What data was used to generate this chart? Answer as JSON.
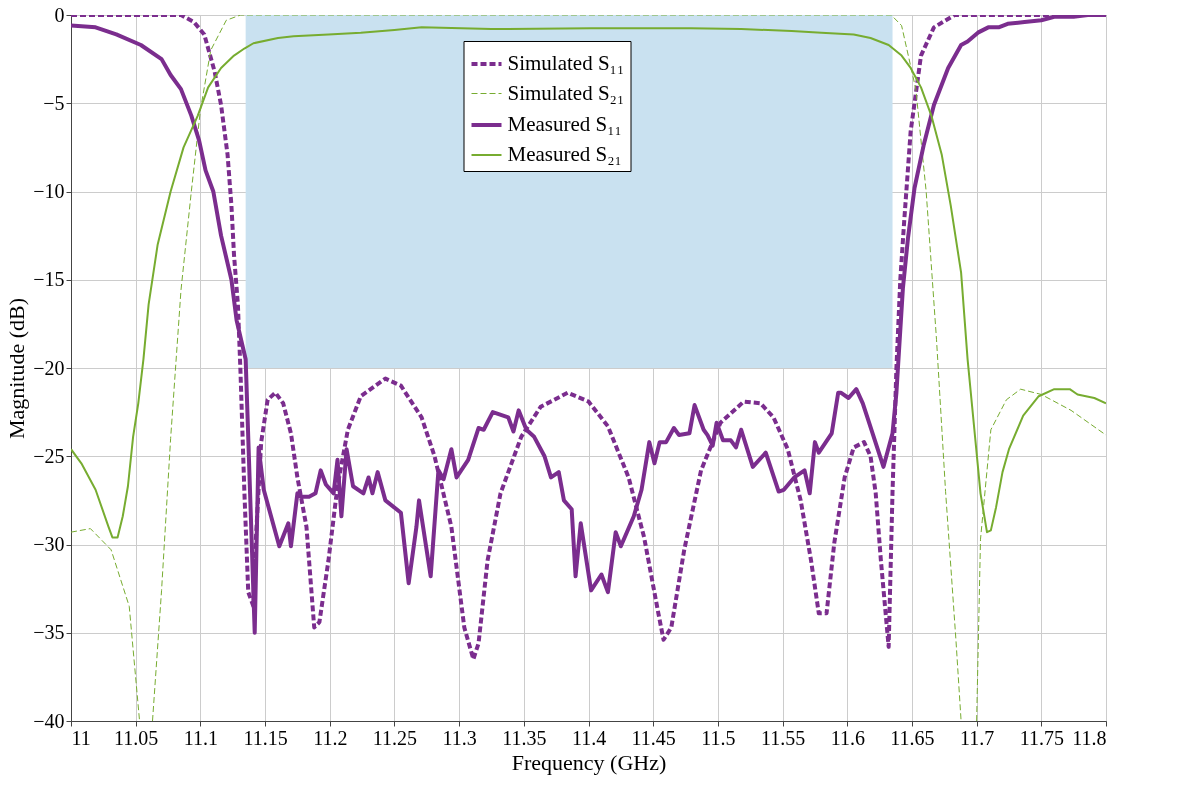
{
  "chart_data": {
    "type": "line",
    "xlabel": "Frequency (GHz)",
    "ylabel": "Magnitude (dB)",
    "xlim": [
      11,
      11.8
    ],
    "ylim": [
      -40,
      0
    ],
    "xticks": [
      11,
      11.05,
      11.1,
      11.15,
      11.2,
      11.25,
      11.3,
      11.35,
      11.4,
      11.45,
      11.5,
      11.55,
      11.6,
      11.65,
      11.7,
      11.75,
      11.8
    ],
    "yticks": [
      -40,
      -35,
      -30,
      -25,
      -20,
      -15,
      -10,
      -5,
      0
    ],
    "grid": true,
    "legend": "top",
    "marker": "none",
    "series": [
      {
        "type": "area",
        "color": "#c9e1f0",
        "x": [
          11.135,
          11.635
        ],
        "values": [
          -20,
          -20
        ]
      },
      {
        "name": "Simulated S₁₁",
        "color": "#7b2d8e",
        "line_style": "dashed",
        "x": [
          11.0,
          11.085,
          11.095,
          11.103,
          11.111,
          11.116,
          11.121,
          11.124,
          11.126,
          11.129,
          11.131,
          11.134,
          11.137,
          11.141,
          11.142,
          11.147,
          11.152,
          11.158,
          11.164,
          11.17,
          11.175,
          11.182,
          11.188,
          11.192,
          11.199,
          11.206,
          11.214,
          11.224,
          11.243,
          11.255,
          11.271,
          11.281,
          11.294,
          11.304,
          11.311,
          11.315,
          11.322,
          11.332,
          11.348,
          11.363,
          11.384,
          11.4,
          11.415,
          11.431,
          11.443,
          11.454,
          11.458,
          11.464,
          11.474,
          11.487,
          11.502,
          11.52,
          11.533,
          11.543,
          11.554,
          11.564,
          11.572,
          11.578,
          11.584,
          11.59,
          11.598,
          11.605,
          11.613,
          11.618,
          11.622,
          11.626,
          11.632,
          11.635,
          11.638,
          11.641,
          11.644,
          11.649,
          11.657,
          11.667,
          11.683,
          11.8
        ],
        "values": [
          0,
          0,
          -0.4,
          -1.1,
          -3.2,
          -5.1,
          -7.9,
          -10.8,
          -13.6,
          -16.4,
          -20.2,
          -27,
          -32.7,
          -33.5,
          -30.9,
          -24.2,
          -21.8,
          -21.4,
          -22,
          -23.7,
          -26.2,
          -29,
          -34.7,
          -34.4,
          -30.9,
          -26.7,
          -23.5,
          -21.6,
          -20.6,
          -21,
          -22.8,
          -25,
          -29,
          -34.7,
          -36.5,
          -35.6,
          -30.9,
          -27.1,
          -23.9,
          -22.2,
          -21.4,
          -21.9,
          -23.3,
          -26.2,
          -29.6,
          -33.9,
          -35.4,
          -34.7,
          -30.3,
          -25.8,
          -23.1,
          -21.9,
          -22,
          -22.8,
          -24.6,
          -27.5,
          -30.9,
          -33.9,
          -33.9,
          -29.9,
          -26.2,
          -24.5,
          -24.2,
          -25,
          -27.1,
          -30.9,
          -35.8,
          -27,
          -20,
          -15,
          -11.7,
          -6.6,
          -2.3,
          -0.7,
          0,
          0
        ]
      },
      {
        "name": "Simulated S₂₁",
        "color": "#77ac30",
        "line_style": "dashed",
        "x": [
          11.0,
          11.015,
          11.031,
          11.045,
          11.053,
          11.058,
          11.063,
          11.07,
          11.077,
          11.085,
          11.093,
          11.1,
          11.108,
          11.12,
          11.131,
          11.634,
          11.642,
          11.653,
          11.661,
          11.669,
          11.676,
          11.684,
          11.688,
          11.694,
          11.7,
          11.703,
          11.711,
          11.723,
          11.734,
          11.75,
          11.773,
          11.8
        ],
        "values": [
          -29.3,
          -29.1,
          -30.3,
          -33.5,
          -40,
          null,
          -40,
          -32.6,
          -24,
          -15.6,
          -10,
          -5.4,
          -2,
          -0.3,
          0,
          0,
          -0.6,
          -4.2,
          -10,
          -18.4,
          -27,
          -35.4,
          -40,
          null,
          -40,
          -29.7,
          -23.5,
          -21.8,
          -21.2,
          -21.5,
          -22.4,
          -23.8
        ]
      },
      {
        "name": "Measured S₁₁",
        "color": "#7b2d8e",
        "line_style": "solid",
        "x": [
          11.0,
          11.019,
          11.035,
          11.054,
          11.07,
          11.077,
          11.085,
          11.093,
          11.099,
          11.104,
          11.11,
          11.116,
          11.124,
          11.128,
          11.135,
          11.142,
          11.145,
          11.149,
          11.161,
          11.168,
          11.17,
          11.175,
          11.178,
          11.184,
          11.189,
          11.193,
          11.197,
          11.203,
          11.206,
          11.209,
          11.213,
          11.218,
          11.226,
          11.23,
          11.233,
          11.237,
          11.243,
          11.255,
          11.261,
          11.267,
          11.269,
          11.278,
          11.284,
          11.288,
          11.294,
          11.298,
          11.307,
          11.315,
          11.319,
          11.326,
          11.338,
          11.342,
          11.346,
          11.352,
          11.358,
          11.366,
          11.371,
          11.377,
          11.381,
          11.387,
          11.39,
          11.394,
          11.402,
          11.41,
          11.415,
          11.421,
          11.425,
          11.435,
          11.441,
          11.447,
          11.451,
          11.455,
          11.46,
          11.466,
          11.47,
          11.478,
          11.482,
          11.489,
          11.492,
          11.496,
          11.499,
          11.504,
          11.51,
          11.514,
          11.518,
          11.527,
          11.537,
          11.547,
          11.551,
          11.559,
          11.567,
          11.571,
          11.575,
          11.578,
          11.588,
          11.593,
          11.595,
          11.601,
          11.607,
          11.612,
          11.616,
          11.628,
          11.635,
          11.638,
          11.639,
          11.643,
          11.647,
          11.652,
          11.659,
          11.667,
          11.678,
          11.688,
          11.693,
          11.701,
          11.709,
          11.717,
          11.724,
          11.737,
          11.75,
          11.76,
          11.775,
          11.786,
          11.8
        ],
        "values": [
          -0.6,
          -0.7,
          -1.1,
          -1.7,
          -2.5,
          -3.4,
          -4.2,
          -5.7,
          -7.1,
          -8.8,
          -10,
          -12.5,
          -15,
          -17.3,
          -19.5,
          -35,
          -24.5,
          -26.9,
          -30.1,
          -28.8,
          -30.1,
          -27.1,
          -27.3,
          -27.3,
          -27.1,
          -25.8,
          -26.6,
          -27.1,
          -25.2,
          -28.4,
          -24.6,
          -26.7,
          -27.1,
          -26.2,
          -27.1,
          -25.9,
          -27.5,
          -28.2,
          -32.2,
          -29,
          -27.5,
          -31.8,
          -25.8,
          -26.3,
          -24.6,
          -26.2,
          -25.2,
          -23.4,
          -23.5,
          -22.5,
          -22.8,
          -23.6,
          -22.4,
          -23.5,
          -23.9,
          -25,
          -26.2,
          -25.9,
          -27.5,
          -28,
          -31.8,
          -28.8,
          -32.6,
          -31.7,
          -32.7,
          -29.3,
          -30.1,
          -28.4,
          -26.9,
          -24.2,
          -25.4,
          -24.2,
          -24.2,
          -23.4,
          -23.8,
          -23.7,
          -22.1,
          -23.5,
          -23.8,
          -24.4,
          -23.1,
          -24.1,
          -24.1,
          -24.5,
          -23.5,
          -25.6,
          -24.8,
          -27,
          -26.9,
          -26.2,
          -25.8,
          -27.1,
          -24.2,
          -24.8,
          -23.7,
          -21.4,
          -21.4,
          -21.7,
          -21.2,
          -22,
          -22.9,
          -25.6,
          -23.7,
          -21.4,
          -20.2,
          -15.5,
          -12.6,
          -9.8,
          -7.4,
          -5.1,
          -3,
          -1.7,
          -1.5,
          -1,
          -0.7,
          -0.7,
          -0.5,
          -0.4,
          -0.3,
          -0.1,
          -0.1,
          0,
          0
        ]
      },
      {
        "name": "Measured S₂₁",
        "color": "#77ac30",
        "line_style": "solid",
        "x": [
          11.0,
          11.008,
          11.019,
          11.029,
          11.032,
          11.036,
          11.04,
          11.044,
          11.048,
          11.052,
          11.056,
          11.06,
          11.067,
          11.077,
          11.087,
          11.098,
          11.106,
          11.116,
          11.126,
          11.134,
          11.141,
          11.16,
          11.172,
          11.199,
          11.224,
          11.25,
          11.271,
          11.325,
          11.402,
          11.479,
          11.518,
          11.557,
          11.58,
          11.605,
          11.618,
          11.632,
          11.642,
          11.649,
          11.657,
          11.665,
          11.673,
          11.68,
          11.688,
          11.693,
          11.698,
          11.703,
          11.708,
          11.711,
          11.715,
          11.72,
          11.725,
          11.736,
          11.748,
          11.76,
          11.772,
          11.778,
          11.791,
          11.8
        ],
        "values": [
          -24.6,
          -25.4,
          -26.9,
          -29,
          -29.6,
          -29.6,
          -28.4,
          -26.7,
          -23.9,
          -22,
          -19.5,
          -16.4,
          -13,
          -10,
          -7.5,
          -5.7,
          -4.1,
          -3,
          -2.3,
          -1.9,
          -1.6,
          -1.3,
          -1.2,
          -1.1,
          -1,
          -0.85,
          -0.7,
          -0.8,
          -0.75,
          -0.75,
          -0.8,
          -0.9,
          -1,
          -1.1,
          -1.3,
          -1.7,
          -2.3,
          -3,
          -4.1,
          -5.7,
          -7.9,
          -10.8,
          -14.6,
          -19.5,
          -23.3,
          -27.1,
          -29.3,
          -29.2,
          -27.9,
          -25.9,
          -24.6,
          -22.7,
          -21.6,
          -21.2,
          -21.2,
          -21.5,
          -21.7,
          -22
        ]
      }
    ]
  }
}
